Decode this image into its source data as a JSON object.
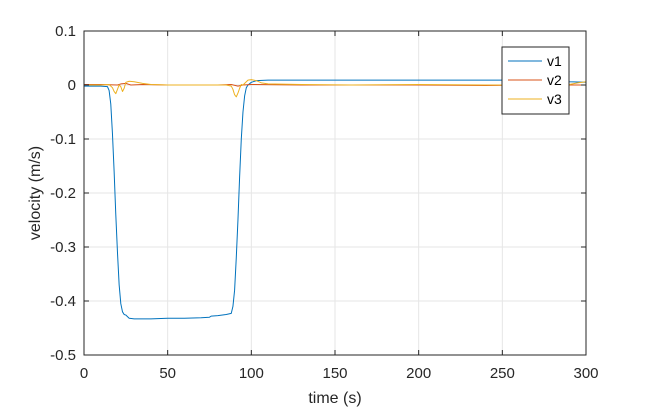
{
  "chart_data": {
    "type": "line",
    "title": "",
    "xlabel": "time (s)",
    "ylabel": "velocity (m/s)",
    "xlim": [
      0,
      300
    ],
    "ylim": [
      -0.5,
      0.1
    ],
    "xticks": [
      0,
      50,
      100,
      150,
      200,
      250,
      300
    ],
    "yticks": [
      -0.5,
      -0.4,
      -0.3,
      -0.2,
      -0.1,
      0,
      0.1
    ],
    "xtick_labels": [
      "0",
      "50",
      "100",
      "150",
      "200",
      "250",
      "300"
    ],
    "ytick_labels": [
      "-0.5",
      "-0.4",
      "-0.3",
      "-0.2",
      "-0.1",
      "0",
      "0.1"
    ],
    "grid": true,
    "legend_position": "top-right",
    "series": [
      {
        "name": "v1",
        "color": "#0072BD",
        "x": [
          0,
          10,
          14,
          15,
          16,
          17,
          18,
          19,
          20,
          21,
          22,
          23,
          24,
          25,
          27,
          30,
          40,
          50,
          60,
          70,
          75,
          76,
          80,
          85,
          88,
          89,
          90,
          91,
          92,
          93,
          94,
          95,
          96,
          97,
          98,
          100,
          103,
          110,
          150,
          200,
          250,
          280,
          290,
          300
        ],
        "y": [
          -0.002,
          -0.002,
          -0.003,
          -0.01,
          -0.035,
          -0.09,
          -0.16,
          -0.24,
          -0.31,
          -0.37,
          -0.405,
          -0.42,
          -0.425,
          -0.426,
          -0.432,
          -0.433,
          -0.433,
          -0.432,
          -0.432,
          -0.431,
          -0.43,
          -0.428,
          -0.427,
          -0.425,
          -0.423,
          -0.41,
          -0.38,
          -0.32,
          -0.25,
          -0.17,
          -0.1,
          -0.05,
          -0.02,
          -0.005,
          0.0,
          0.005,
          0.008,
          0.009,
          0.009,
          0.009,
          0.009,
          0.008,
          0.006,
          0.005
        ]
      },
      {
        "name": "v2",
        "color": "#D95319",
        "x": [
          0,
          10,
          20,
          22,
          25,
          28,
          35,
          50,
          80,
          88,
          92,
          95,
          100,
          130,
          160,
          200,
          240,
          270,
          290,
          300
        ],
        "y": [
          0.001,
          0.001,
          0.0,
          0.002,
          0.003,
          0.0,
          0.001,
          0.0,
          0.0,
          0.001,
          -0.002,
          0.0,
          0.001,
          0.0,
          0.0,
          0.0,
          -0.001,
          0.0,
          0.0,
          0.0
        ]
      },
      {
        "name": "v3",
        "color": "#EDB120",
        "x": [
          0,
          10,
          15,
          17,
          18,
          19,
          20,
          21,
          22,
          23,
          24,
          25,
          27,
          30,
          35,
          40,
          50,
          80,
          85,
          88,
          89,
          90,
          91,
          92,
          93,
          94,
          95,
          96,
          97,
          98,
          100,
          103,
          106,
          110,
          130,
          160,
          200,
          240,
          280,
          290,
          295,
          300
        ],
        "y": [
          0.0,
          0.0,
          0.001,
          -0.005,
          -0.012,
          -0.016,
          -0.008,
          0.0,
          -0.003,
          -0.012,
          -0.006,
          0.005,
          0.007,
          0.006,
          0.003,
          0.001,
          0.0,
          0.0,
          0.0,
          -0.002,
          -0.008,
          -0.018,
          -0.022,
          -0.015,
          -0.006,
          0.001,
          0.0,
          0.003,
          0.006,
          0.009,
          0.01,
          0.008,
          0.004,
          0.002,
          0.001,
          0.0,
          0.001,
          0.0,
          0.0,
          0.001,
          0.004,
          0.006
        ]
      }
    ]
  }
}
